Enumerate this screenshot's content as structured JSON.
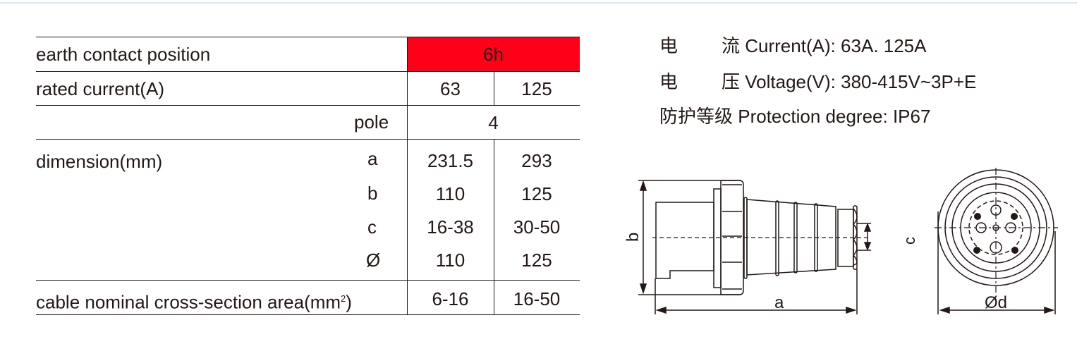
{
  "table": {
    "earth_contact": {
      "label": "earth contact position",
      "value": "6h"
    },
    "rated_current": {
      "label": "rated current(A)",
      "values": [
        "63",
        "125"
      ]
    },
    "pole": {
      "label": "pole",
      "value": "4"
    },
    "dimension": {
      "label": "dimension(mm)",
      "rows": [
        {
          "key": "a",
          "values": [
            "231.5",
            "293"
          ]
        },
        {
          "key": "b",
          "values": [
            "110",
            "125"
          ]
        },
        {
          "key": "c",
          "values": [
            "16-38",
            "30-50"
          ]
        },
        {
          "key": "Ø",
          "values": [
            "110",
            "125"
          ]
        }
      ]
    },
    "cable": {
      "label": "cable nominal cross-section area(mm",
      "sup": "2",
      "label_end": ")",
      "values": [
        "6-16",
        "16-50"
      ]
    },
    "highlight_color": "#ff0019"
  },
  "specs": [
    {
      "cn1": "电",
      "cn2": "流",
      "en": "Current(A): 63A. 125A"
    },
    {
      "cn1": "电",
      "cn2": "压",
      "en": "Voltage(V): 380-415V~3P+E"
    },
    {
      "cn": "防护等级",
      "en": "Protection degree: IP67"
    }
  ],
  "drawing": {
    "label_a": "a",
    "label_b": "b",
    "label_c": "c",
    "label_d": "Ød"
  }
}
